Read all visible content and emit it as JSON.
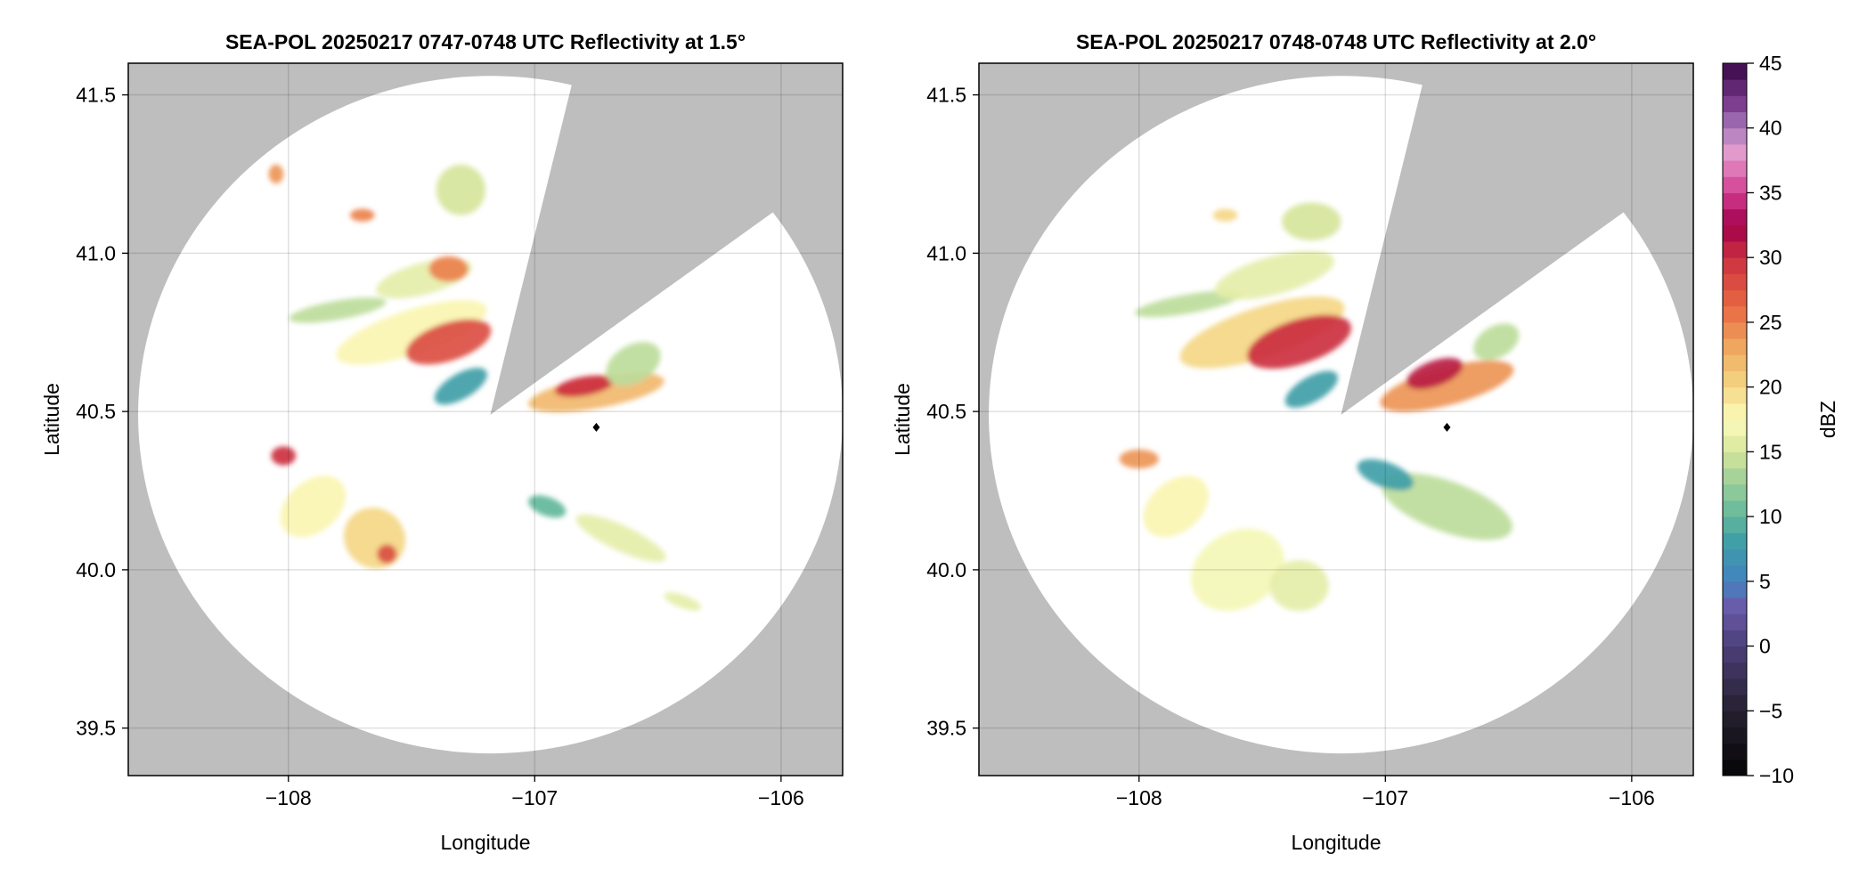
{
  "chart_data": [
    {
      "type": "heatmap",
      "title": "SEA-POL 20250217 0747-0748 UTC Reflectivity at 1.5°",
      "xlabel": "Longitude",
      "ylabel": "Latitude",
      "xlim": [
        -108.65,
        -105.75
      ],
      "ylim": [
        39.35,
        41.6
      ],
      "xticks": [
        -108,
        -107,
        -106
      ],
      "xtick_labels": [
        "−108",
        "−107",
        "−106"
      ],
      "yticks": [
        39.5,
        40.0,
        40.5,
        41.0,
        41.5
      ],
      "ytick_labels": [
        "39.5",
        "40.0",
        "40.5",
        "41.0",
        "41.5"
      ],
      "grid": true,
      "radar_center": [
        -107.18,
        40.49
      ],
      "range_radius_deg": [
        1.43,
        1.07
      ],
      "blocked_sector_edges": [
        [
          -106.85,
          41.53
        ],
        [
          -106.05,
          41.12
        ]
      ],
      "marker": {
        "lon": -106.75,
        "lat": 40.45,
        "shape": "diamond"
      },
      "echoes": [
        {
          "lon": -107.5,
          "lat": 40.75,
          "rlon": 0.32,
          "rlat": 0.07,
          "rot": -18,
          "dbz": 18
        },
        {
          "lon": -107.35,
          "lat": 40.72,
          "rlon": 0.18,
          "rlat": 0.06,
          "rot": -18,
          "dbz": 28
        },
        {
          "lon": -107.8,
          "lat": 40.82,
          "rlon": 0.2,
          "rlat": 0.03,
          "rot": -10,
          "dbz": 14
        },
        {
          "lon": -107.45,
          "lat": 40.92,
          "rlon": 0.2,
          "rlat": 0.05,
          "rot": -15,
          "dbz": 16
        },
        {
          "lon": -107.35,
          "lat": 40.95,
          "rlon": 0.08,
          "rlat": 0.04,
          "rot": 0,
          "dbz": 25
        },
        {
          "lon": -107.3,
          "lat": 40.58,
          "rlon": 0.12,
          "rlat": 0.04,
          "rot": -30,
          "dbz": 8
        },
        {
          "lon": -106.75,
          "lat": 40.56,
          "rlon": 0.28,
          "rlat": 0.05,
          "rot": -10,
          "dbz": 22
        },
        {
          "lon": -106.8,
          "lat": 40.58,
          "rlon": 0.12,
          "rlat": 0.03,
          "rot": -10,
          "dbz": 30
        },
        {
          "lon": -106.6,
          "lat": 40.65,
          "rlon": 0.12,
          "rlat": 0.06,
          "rot": -30,
          "dbz": 14
        },
        {
          "lon": -108.02,
          "lat": 40.36,
          "rlon": 0.05,
          "rlat": 0.03,
          "rot": 0,
          "dbz": 30
        },
        {
          "lon": -107.9,
          "lat": 40.2,
          "rlon": 0.15,
          "rlat": 0.08,
          "rot": -40,
          "dbz": 18
        },
        {
          "lon": -107.65,
          "lat": 40.1,
          "rlon": 0.12,
          "rlat": 0.1,
          "rot": -50,
          "dbz": 20
        },
        {
          "lon": -107.6,
          "lat": 40.05,
          "rlon": 0.04,
          "rlat": 0.03,
          "rot": 0,
          "dbz": 28
        },
        {
          "lon": -106.65,
          "lat": 40.1,
          "rlon": 0.2,
          "rlat": 0.04,
          "rot": 25,
          "dbz": 16
        },
        {
          "lon": -106.95,
          "lat": 40.2,
          "rlon": 0.08,
          "rlat": 0.03,
          "rot": 20,
          "dbz": 10
        },
        {
          "lon": -107.7,
          "lat": 41.12,
          "rlon": 0.05,
          "rlat": 0.02,
          "rot": 0,
          "dbz": 25
        },
        {
          "lon": -108.05,
          "lat": 41.25,
          "rlon": 0.03,
          "rlat": 0.03,
          "rot": 0,
          "dbz": 24
        },
        {
          "lon": -107.3,
          "lat": 41.2,
          "rlon": 0.1,
          "rlat": 0.08,
          "rot": 0,
          "dbz": 15
        },
        {
          "lon": -106.4,
          "lat": 39.9,
          "rlon": 0.08,
          "rlat": 0.02,
          "rot": 20,
          "dbz": 16
        }
      ]
    },
    {
      "type": "heatmap",
      "title": "SEA-POL 20250217 0748-0748 UTC Reflectivity at 2.0°",
      "xlabel": "Longitude",
      "ylabel": "Latitude",
      "xlim": [
        -108.65,
        -105.75
      ],
      "ylim": [
        39.35,
        41.6
      ],
      "xticks": [
        -108,
        -107,
        -106
      ],
      "xtick_labels": [
        "−108",
        "−107",
        "−106"
      ],
      "yticks": [
        39.5,
        40.0,
        40.5,
        41.0,
        41.5
      ],
      "ytick_labels": [
        "39.5",
        "40.0",
        "40.5",
        "41.0",
        "41.5"
      ],
      "grid": true,
      "radar_center": [
        -107.18,
        40.49
      ],
      "range_radius_deg": [
        1.43,
        1.07
      ],
      "blocked_sector_edges": [
        [
          -106.85,
          41.53
        ],
        [
          -106.05,
          41.12
        ]
      ],
      "marker": {
        "lon": -106.75,
        "lat": 40.45,
        "shape": "diamond"
      },
      "echoes": [
        {
          "lon": -107.5,
          "lat": 40.75,
          "rlon": 0.35,
          "rlat": 0.08,
          "rot": -18,
          "dbz": 20
        },
        {
          "lon": -107.35,
          "lat": 40.72,
          "rlon": 0.22,
          "rlat": 0.07,
          "rot": -18,
          "dbz": 30
        },
        {
          "lon": -107.8,
          "lat": 40.84,
          "rlon": 0.22,
          "rlat": 0.03,
          "rot": -10,
          "dbz": 14
        },
        {
          "lon": -107.45,
          "lat": 40.93,
          "rlon": 0.25,
          "rlat": 0.06,
          "rot": -15,
          "dbz": 16
        },
        {
          "lon": -107.3,
          "lat": 40.57,
          "rlon": 0.12,
          "rlat": 0.04,
          "rot": -30,
          "dbz": 8
        },
        {
          "lon": -106.75,
          "lat": 40.58,
          "rlon": 0.28,
          "rlat": 0.06,
          "rot": -15,
          "dbz": 24
        },
        {
          "lon": -106.8,
          "lat": 40.62,
          "rlon": 0.12,
          "rlat": 0.04,
          "rot": -20,
          "dbz": 31
        },
        {
          "lon": -106.75,
          "lat": 40.2,
          "rlon": 0.28,
          "rlat": 0.08,
          "rot": 20,
          "dbz": 14
        },
        {
          "lon": -107.0,
          "lat": 40.3,
          "rlon": 0.12,
          "rlat": 0.04,
          "rot": 20,
          "dbz": 8
        },
        {
          "lon": -108.0,
          "lat": 40.35,
          "rlon": 0.08,
          "rlat": 0.03,
          "rot": 0,
          "dbz": 24
        },
        {
          "lon": -107.85,
          "lat": 40.2,
          "rlon": 0.15,
          "rlat": 0.08,
          "rot": -40,
          "dbz": 18
        },
        {
          "lon": -107.6,
          "lat": 40.0,
          "rlon": 0.2,
          "rlat": 0.12,
          "rot": -30,
          "dbz": 17
        },
        {
          "lon": -107.35,
          "lat": 39.95,
          "rlon": 0.12,
          "rlat": 0.08,
          "rot": 0,
          "dbz": 16
        },
        {
          "lon": -107.3,
          "lat": 41.1,
          "rlon": 0.12,
          "rlat": 0.06,
          "rot": 0,
          "dbz": 15
        },
        {
          "lon": -107.65,
          "lat": 41.12,
          "rlon": 0.05,
          "rlat": 0.02,
          "rot": 0,
          "dbz": 20
        },
        {
          "lon": -106.55,
          "lat": 40.72,
          "rlon": 0.1,
          "rlat": 0.05,
          "rot": -30,
          "dbz": 14
        }
      ]
    }
  ],
  "colorbar": {
    "label": "dBZ",
    "range": [
      -10,
      45
    ],
    "ticks": [
      -10,
      -5,
      0,
      5,
      10,
      15,
      20,
      25,
      30,
      35,
      40,
      45
    ],
    "tick_labels": [
      "−10",
      "−5",
      "0",
      "5",
      "10",
      "15",
      "20",
      "25",
      "30",
      "35",
      "40",
      "45"
    ],
    "colors": [
      [
        -10,
        "#050505"
      ],
      [
        -5,
        "#25202f"
      ],
      [
        0,
        "#4c3f79"
      ],
      [
        3,
        "#6a5aaa"
      ],
      [
        5,
        "#4384c0"
      ],
      [
        8,
        "#3f9ea8"
      ],
      [
        10,
        "#62b79b"
      ],
      [
        13,
        "#a4d29a"
      ],
      [
        15,
        "#d6e59c"
      ],
      [
        17.5,
        "#fcfcbc"
      ],
      [
        20,
        "#f4d785"
      ],
      [
        23,
        "#efaa60"
      ],
      [
        26,
        "#e96c43"
      ],
      [
        30,
        "#cc2f40"
      ],
      [
        32.5,
        "#a0004a"
      ],
      [
        35,
        "#d23c91"
      ],
      [
        38,
        "#e69ccd"
      ],
      [
        40,
        "#a97cbd"
      ],
      [
        42,
        "#7a3a8c"
      ],
      [
        45,
        "#3a0648"
      ]
    ]
  }
}
